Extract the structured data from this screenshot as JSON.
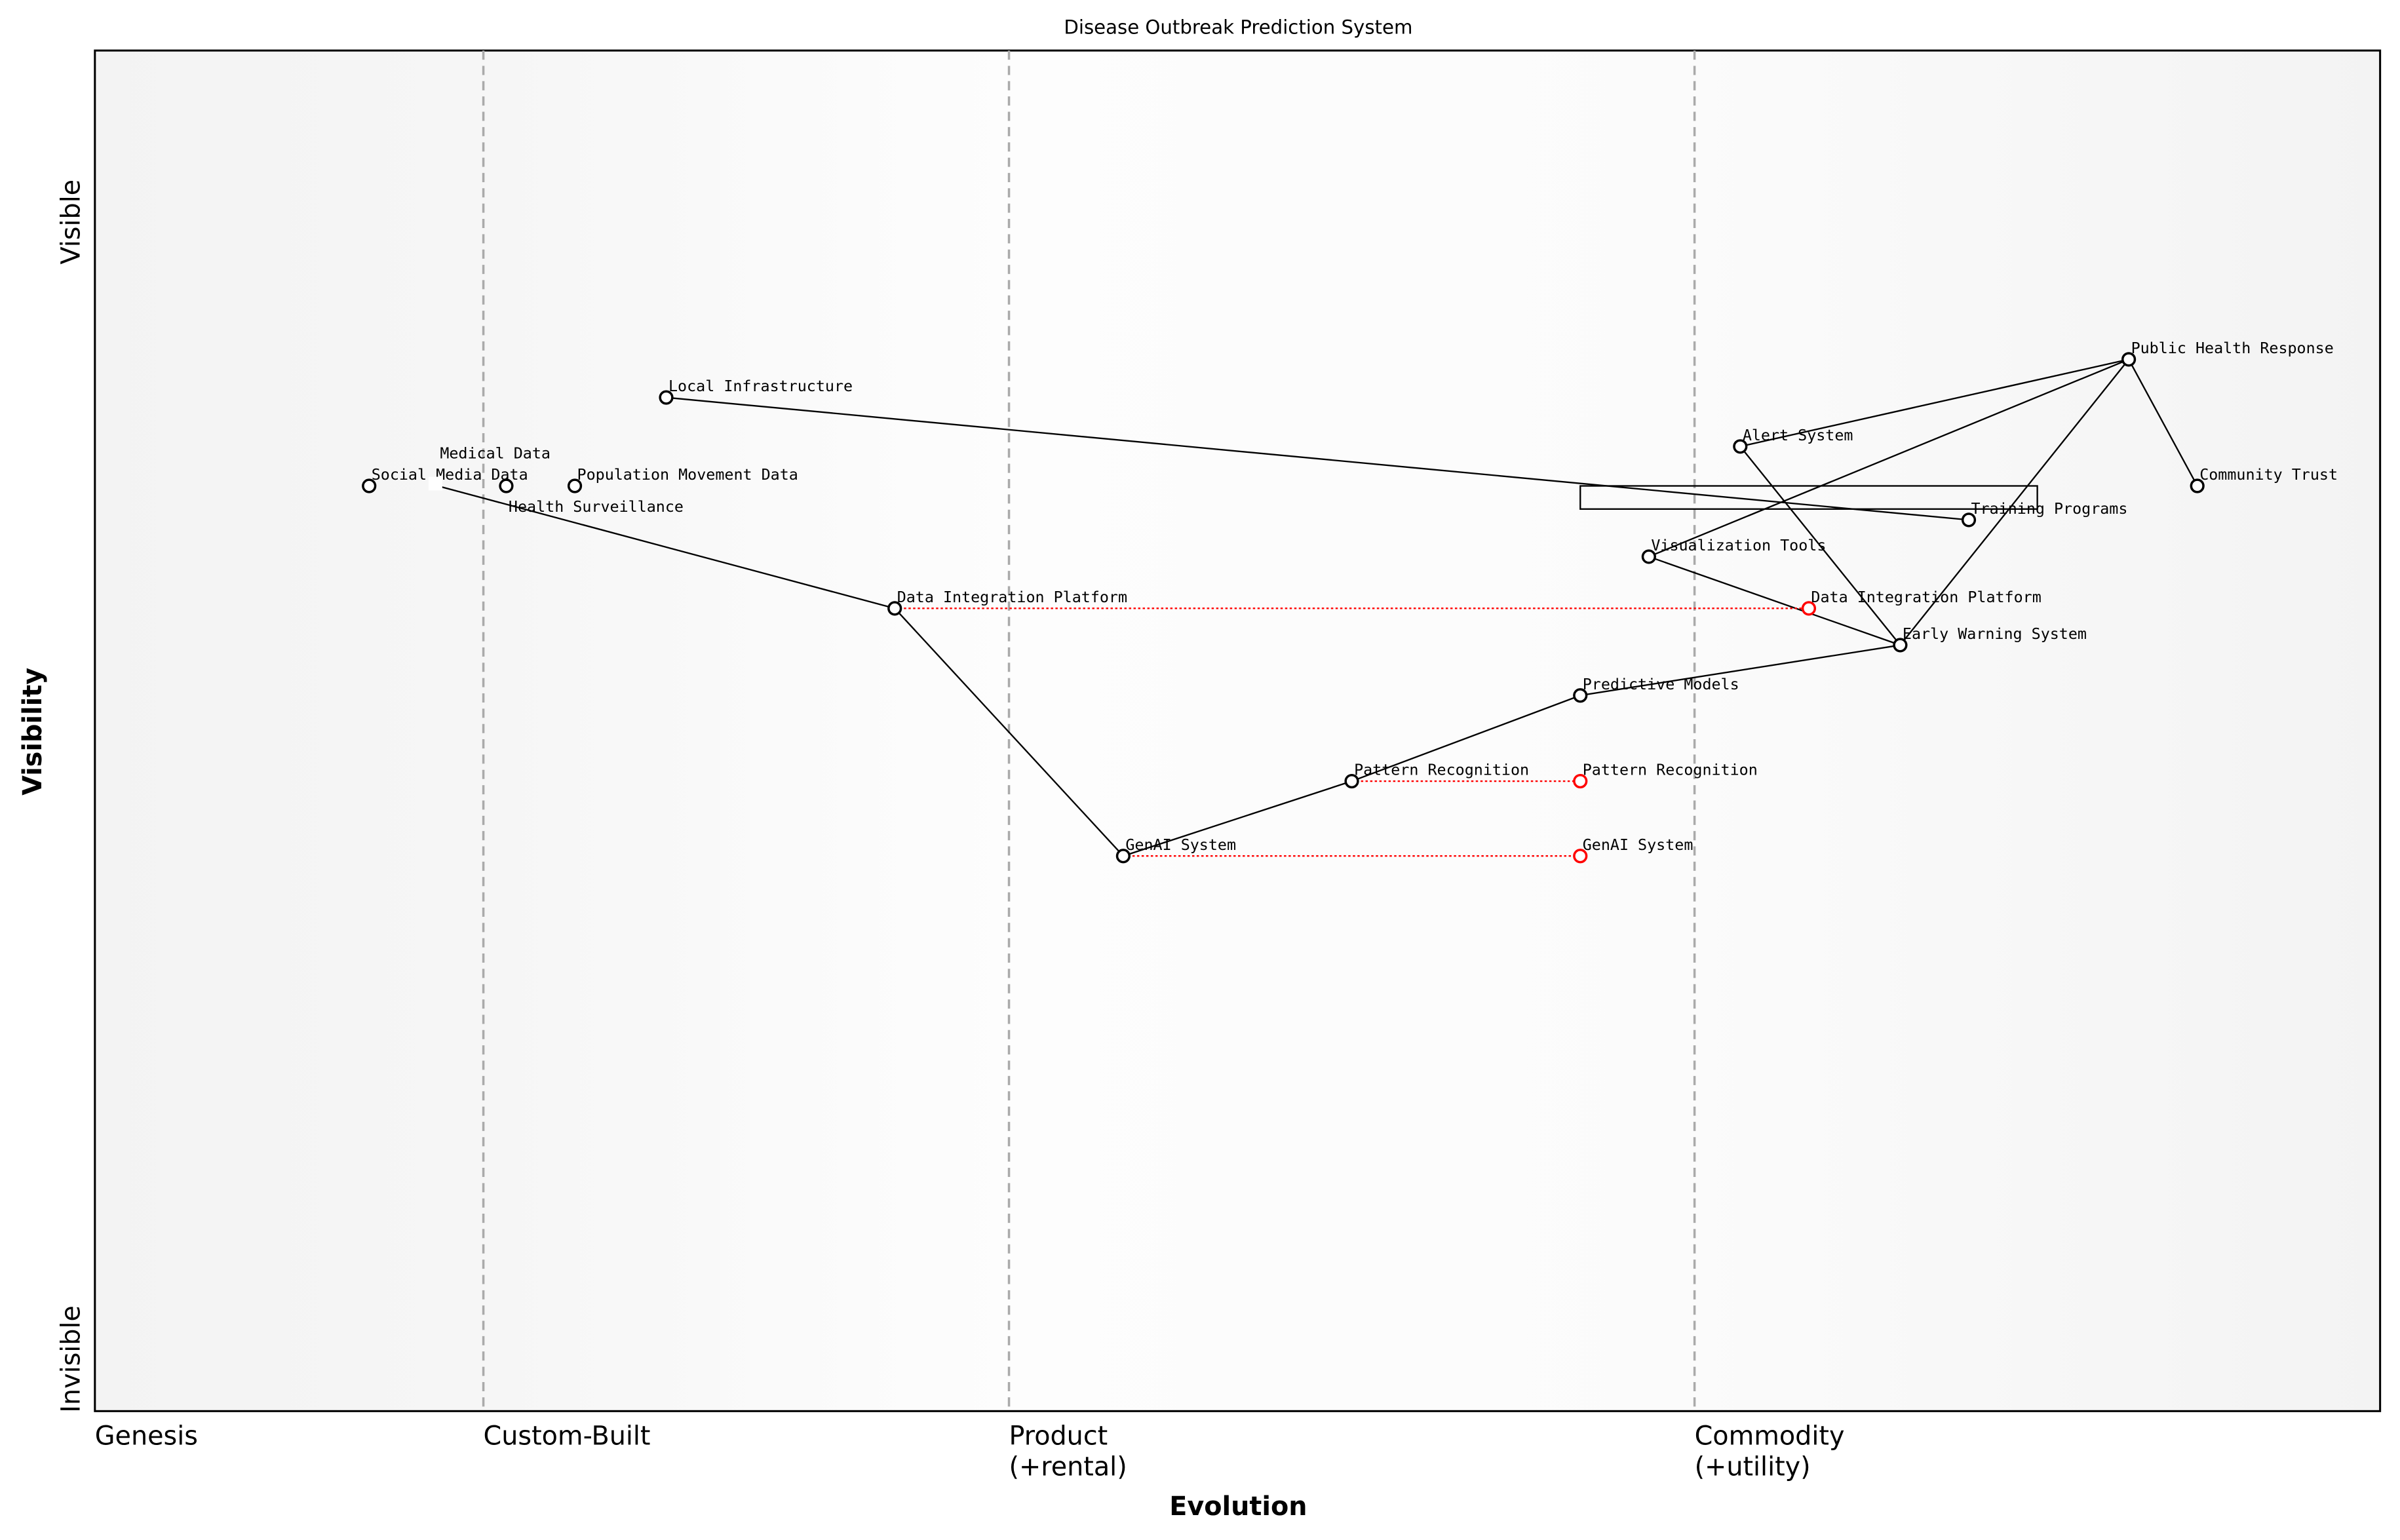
{
  "title": "Disease Outbreak Prediction System",
  "x_axis": {
    "label": "Evolution",
    "stages": [
      {
        "name": "Genesis",
        "line1": "Genesis",
        "line2": "",
        "at": 0.0
      },
      {
        "name": "Custom-Built",
        "line1": "Custom-Built",
        "line2": "",
        "at": 0.17
      },
      {
        "name": "Product",
        "line1": "Product",
        "line2": "(+rental)",
        "at": 0.4
      },
      {
        "name": "Commodity",
        "line1": "Commodity",
        "line2": "(+utility)",
        "at": 0.7
      }
    ]
  },
  "y_axis": {
    "label": "Visibility",
    "top": "Visible",
    "bottom": "Invisible"
  },
  "colors": {
    "node": "#000000",
    "evolved": "#ff0000",
    "grid": "#aaaaaa"
  },
  "components": [
    {
      "name": "Social Media Data",
      "evolution": 0.12,
      "visibility": 0.68
    },
    {
      "name": "Medical Data",
      "evolution": 0.15,
      "visibility": 0.68,
      "marker": "square"
    },
    {
      "name": "Health Surveillance",
      "evolution": 0.18,
      "visibility": 0.68
    },
    {
      "name": "Population Movement Data",
      "evolution": 0.21,
      "visibility": 0.68
    },
    {
      "name": "Local Infrastructure",
      "evolution": 0.25,
      "visibility": 0.745
    },
    {
      "name": "Data Integration Platform",
      "evolution": 0.35,
      "visibility": 0.59
    },
    {
      "name": "GenAI System",
      "evolution": 0.45,
      "visibility": 0.408
    },
    {
      "name": "Pattern Recognition",
      "evolution": 0.55,
      "visibility": 0.463
    },
    {
      "name": "Predictive Models",
      "evolution": 0.65,
      "visibility": 0.526
    },
    {
      "name": "Visualization Tools",
      "evolution": 0.68,
      "visibility": 0.628
    },
    {
      "name": "Alert System",
      "evolution": 0.72,
      "visibility": 0.709
    },
    {
      "name": "Early Warning System",
      "evolution": 0.79,
      "visibility": 0.563
    },
    {
      "name": "Training Programs",
      "evolution": 0.82,
      "visibility": 0.655
    },
    {
      "name": "Public Health Response",
      "evolution": 0.89,
      "visibility": 0.773
    },
    {
      "name": "Community Trust",
      "evolution": 0.92,
      "visibility": 0.68
    }
  ],
  "evolved": [
    {
      "name": "Data Integration Platform",
      "from": 0.35,
      "to": 0.75,
      "visibility": 0.59
    },
    {
      "name": "Pattern Recognition",
      "from": 0.55,
      "to": 0.65,
      "visibility": 0.463
    },
    {
      "name": "GenAI System",
      "from": 0.45,
      "to": 0.65,
      "visibility": 0.408
    }
  ],
  "links": [
    [
      "Medical Data",
      "Data Integration Platform"
    ],
    [
      "Data Integration Platform",
      "GenAI System"
    ],
    [
      "GenAI System",
      "Pattern Recognition"
    ],
    [
      "Pattern Recognition",
      "Predictive Models"
    ],
    [
      "Predictive Models",
      "Early Warning System"
    ],
    [
      "Early Warning System",
      "Visualization Tools"
    ],
    [
      "Visualization Tools",
      "Public Health Response"
    ],
    [
      "Alert System",
      "Public Health Response"
    ],
    [
      "Alert System",
      "Early Warning System"
    ],
    [
      "Early Warning System",
      "Public Health Response"
    ],
    [
      "Public Health Response",
      "Community Trust"
    ],
    [
      "Local Infrastructure",
      "Training Programs"
    ]
  ],
  "annotation_box": {
    "evolution": [
      0.65,
      0.85
    ],
    "visibility": [
      0.663,
      0.68
    ]
  }
}
